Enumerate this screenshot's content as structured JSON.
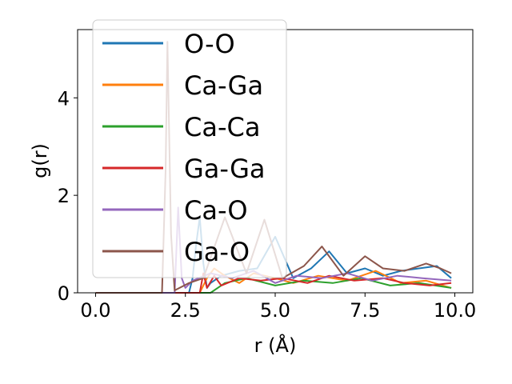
{
  "chart_data": {
    "type": "line",
    "xlabel": "r (Å)",
    "ylabel": "g(r)",
    "xlim": [
      -0.5,
      10.5
    ],
    "ylim": [
      0,
      5.4
    ],
    "xticks": [
      0.0,
      2.5,
      5.0,
      7.5,
      10.0
    ],
    "xtick_labels": [
      "0.0",
      "2.5",
      "5.0",
      "7.5",
      "10.0"
    ],
    "yticks": [
      0,
      2,
      4
    ],
    "ytick_labels": [
      "0",
      "2",
      "4"
    ],
    "grid": false,
    "legend_position": "top-left",
    "series": [
      {
        "name": "O-O",
        "color": "#1f77b4",
        "x": [
          0,
          2.6,
          2.7,
          2.8,
          2.9,
          3.0,
          3.1,
          3.2,
          3.5,
          4.0,
          4.5,
          5.0,
          5.5,
          6.0,
          6.5,
          7.0,
          7.5,
          8.0,
          8.5,
          9.0,
          9.5,
          9.9
        ],
        "y": [
          0,
          0,
          0.3,
          1.0,
          1.55,
          0.6,
          0.1,
          0.2,
          0.35,
          0.45,
          0.5,
          1.15,
          0.3,
          0.5,
          0.85,
          0.4,
          0.5,
          0.35,
          0.45,
          0.5,
          0.55,
          0.3
        ]
      },
      {
        "name": "Ca-Ga",
        "color": "#ff7f0e",
        "x": [
          0,
          2.9,
          3.1,
          3.3,
          3.6,
          4.0,
          4.4,
          5.0,
          5.5,
          6.2,
          7.0,
          7.8,
          8.5,
          9.2,
          9.9
        ],
        "y": [
          0,
          0,
          0.3,
          0.5,
          0.35,
          0.2,
          0.4,
          0.3,
          0.2,
          0.35,
          0.25,
          0.45,
          0.2,
          0.25,
          0.1
        ]
      },
      {
        "name": "Ca-Ca",
        "color": "#2ca02c",
        "x": [
          0,
          3.2,
          3.6,
          4.2,
          5.0,
          5.8,
          6.6,
          7.4,
          8.2,
          9.0,
          9.9
        ],
        "y": [
          0,
          0,
          0.2,
          0.3,
          0.15,
          0.25,
          0.2,
          0.3,
          0.15,
          0.2,
          0.1
        ]
      },
      {
        "name": "Ga-Ga",
        "color": "#d62728",
        "x": [
          0,
          2.9,
          3.0,
          3.1,
          3.3,
          3.5,
          4.0,
          4.6,
          5.2,
          5.9,
          6.5,
          7.2,
          8.0,
          8.6,
          9.3,
          9.9
        ],
        "y": [
          0,
          0,
          0.4,
          0.1,
          0.35,
          0.15,
          0.3,
          0.25,
          0.3,
          0.2,
          0.35,
          0.25,
          0.3,
          0.2,
          0.15,
          0.2
        ]
      },
      {
        "name": "Ca-O",
        "color": "#9467bd",
        "x": [
          0,
          2.2,
          2.3,
          2.4,
          2.5,
          2.7,
          3.2,
          3.8,
          4.4,
          5.0,
          5.6,
          6.3,
          7.0,
          7.7,
          8.4,
          9.1,
          9.9
        ],
        "y": [
          0,
          0,
          1.75,
          0.3,
          0.1,
          0.25,
          0.4,
          0.3,
          0.45,
          0.2,
          0.35,
          0.3,
          0.4,
          0.25,
          0.35,
          0.3,
          0.25
        ]
      },
      {
        "name": "Ga-O",
        "color": "#8c564b",
        "x": [
          0,
          1.85,
          1.95,
          2.0,
          2.1,
          2.2,
          2.6,
          3.0,
          3.6,
          4.2,
          4.7,
          5.2,
          5.8,
          6.3,
          6.9,
          7.5,
          8.0,
          8.6,
          9.2,
          9.6,
          9.9
        ],
        "y": [
          0,
          0,
          2.5,
          5.15,
          1.2,
          0.05,
          0.2,
          0.3,
          1.55,
          0.4,
          1.5,
          0.3,
          0.55,
          0.95,
          0.35,
          0.75,
          0.5,
          0.45,
          0.6,
          0.5,
          0.4
        ]
      }
    ]
  }
}
